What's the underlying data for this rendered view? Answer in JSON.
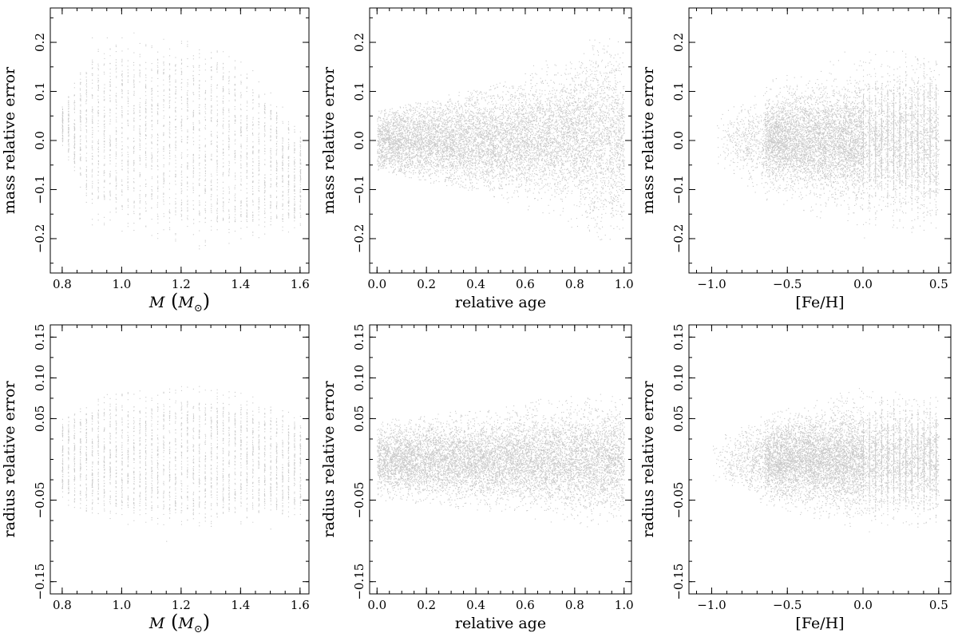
{
  "chart_data": [
    {
      "type": "scatter",
      "panel": "top-left",
      "xlabel": "M (M⊙)",
      "xlabel_math": {
        "var": "M",
        "open": "(",
        "sub_var": "M",
        "sub": "⊙",
        "close": ")"
      },
      "ylabel": "mass relative error",
      "xlim": [
        0.76,
        1.63
      ],
      "ylim": [
        -0.27,
        0.27
      ],
      "xticks": [
        0.8,
        1.0,
        1.2,
        1.4,
        1.6
      ],
      "xtick_labels": [
        "0.8",
        "1.0",
        "1.2",
        "1.4",
        "1.6"
      ],
      "yticks": [
        -0.2,
        -0.1,
        0.0,
        0.1,
        0.2
      ],
      "ytick_labels": [
        "−0.2",
        "−0.1",
        "0.0",
        "0.1",
        "0.2"
      ],
      "x_min_tick": 0.05,
      "y_min_tick": 0.05,
      "grid": false,
      "point_color": "#c9c9c9",
      "distribution": {
        "kind": "columns",
        "x_start": 0.8,
        "x_end": 1.6,
        "x_step": 0.02,
        "center": 0.0,
        "upper": [
          [
            0.8,
            0.06
          ],
          [
            0.9,
            0.16
          ],
          [
            1.3,
            0.16
          ],
          [
            1.4,
            0.13
          ],
          [
            1.6,
            0.0
          ]
        ],
        "lower": [
          [
            0.8,
            0.0
          ],
          [
            0.86,
            -0.07
          ],
          [
            0.9,
            -0.13
          ],
          [
            1.2,
            -0.17
          ],
          [
            1.6,
            -0.16
          ]
        ],
        "outliers": [
          [
            0.9,
            0.21
          ],
          [
            0.95,
            0.21
          ],
          [
            1.0,
            0.21
          ],
          [
            1.04,
            0.22
          ],
          [
            1.18,
            0.17
          ],
          [
            1.26,
            -0.22
          ],
          [
            1.26,
            0.17
          ],
          [
            1.3,
            0.18
          ]
        ]
      }
    },
    {
      "type": "scatter",
      "panel": "top-middle",
      "xlabel": "relative age",
      "ylabel": "mass relative error",
      "xlim": [
        -0.03,
        1.03
      ],
      "ylim": [
        -0.27,
        0.27
      ],
      "xticks": [
        0.0,
        0.2,
        0.4,
        0.6,
        0.8,
        1.0
      ],
      "xtick_labels": [
        "0.0",
        "0.2",
        "0.4",
        "0.6",
        "0.8",
        "1.0"
      ],
      "yticks": [
        -0.2,
        -0.1,
        0.0,
        0.1,
        0.2
      ],
      "ytick_labels": [
        "−0.2",
        "−0.1",
        "0.0",
        "0.1",
        "0.2"
      ],
      "x_min_tick": 0.05,
      "y_min_tick": 0.05,
      "grid": false,
      "point_color": "#c9c9c9",
      "distribution": {
        "kind": "cloud",
        "x_range": [
          0.0,
          1.0
        ],
        "center": [
          [
            0.0,
            0.0
          ],
          [
            0.5,
            0.0
          ],
          [
            0.85,
            0.01
          ],
          [
            1.0,
            0.0
          ]
        ],
        "spread": [
          [
            0.0,
            0.035
          ],
          [
            0.5,
            0.05
          ],
          [
            0.8,
            0.06
          ],
          [
            0.9,
            0.09
          ],
          [
            1.0,
            0.09
          ]
        ],
        "max_extent": [
          [
            0.0,
            0.06
          ],
          [
            0.5,
            0.12
          ],
          [
            0.9,
            0.21
          ],
          [
            1.0,
            0.2
          ]
        ]
      }
    },
    {
      "type": "scatter",
      "panel": "top-right",
      "xlabel": "[Fe/H]",
      "ylabel": "mass relative error",
      "xlim": [
        -1.15,
        0.58
      ],
      "ylim": [
        -0.27,
        0.27
      ],
      "xticks": [
        -1.0,
        -0.5,
        0.0,
        0.5
      ],
      "xtick_labels": [
        "−1.0",
        "−0.5",
        "0.0",
        "0.5"
      ],
      "yticks": [
        -0.2,
        -0.1,
        0.0,
        0.1,
        0.2
      ],
      "ytick_labels": [
        "−0.2",
        "−0.1",
        "0.0",
        "0.1",
        "0.2"
      ],
      "x_min_tick": 0.1,
      "y_min_tick": 0.05,
      "grid": false,
      "point_color": "#c9c9c9",
      "distribution": {
        "kind": "cloud",
        "x_range": [
          -1.0,
          0.5
        ],
        "center": [
          [
            -1.0,
            0.0
          ],
          [
            0.5,
            0.0
          ]
        ],
        "spread": [
          [
            -1.0,
            0.02
          ],
          [
            -0.65,
            0.04
          ],
          [
            0.0,
            0.06
          ],
          [
            0.5,
            0.07
          ]
        ],
        "max_extent": [
          [
            -1.0,
            0.04
          ],
          [
            -0.65,
            0.12
          ],
          [
            0.0,
            0.2
          ],
          [
            0.5,
            0.18
          ]
        ],
        "dense_from": -0.65,
        "columns_from": 0.0
      }
    },
    {
      "type": "scatter",
      "panel": "bottom-left",
      "xlabel": "M (M⊙)",
      "xlabel_math": {
        "var": "M",
        "open": "(",
        "sub_var": "M",
        "sub": "⊙",
        "close": ")"
      },
      "ylabel": "radius relative error",
      "xlim": [
        0.76,
        1.63
      ],
      "ylim": [
        -0.165,
        0.165
      ],
      "xticks": [
        0.8,
        1.0,
        1.2,
        1.4,
        1.6
      ],
      "xtick_labels": [
        "0.8",
        "1.0",
        "1.2",
        "1.4",
        "1.6"
      ],
      "yticks": [
        -0.15,
        -0.05,
        0.05,
        0.1,
        0.15
      ],
      "ytick_labels": [
        "−0.15",
        "−0.05",
        "0.05",
        "0.10",
        "0.15"
      ],
      "x_min_tick": 0.05,
      "y_min_tick": 0.025,
      "grid": false,
      "point_color": "#c9c9c9",
      "distribution": {
        "kind": "columns",
        "x_start": 0.8,
        "x_end": 1.6,
        "x_step": 0.02,
        "center": 0.0,
        "upper": [
          [
            0.8,
            0.04
          ],
          [
            0.86,
            0.055
          ],
          [
            1.0,
            0.065
          ],
          [
            1.2,
            0.07
          ],
          [
            1.4,
            0.065
          ],
          [
            1.6,
            0.04
          ]
        ],
        "lower": [
          [
            0.8,
            -0.04
          ],
          [
            0.86,
            -0.05
          ],
          [
            1.0,
            -0.06
          ],
          [
            1.2,
            -0.065
          ],
          [
            1.4,
            -0.06
          ],
          [
            1.6,
            -0.055
          ]
        ],
        "outliers": [
          [
            1.15,
            -0.1
          ],
          [
            1.5,
            -0.085
          ],
          [
            1.26,
            0.09
          ],
          [
            0.95,
            0.08
          ]
        ]
      }
    },
    {
      "type": "scatter",
      "panel": "bottom-middle",
      "xlabel": "relative age",
      "ylabel": "radius relative error",
      "xlim": [
        -0.03,
        1.03
      ],
      "ylim": [
        -0.165,
        0.165
      ],
      "xticks": [
        0.0,
        0.2,
        0.4,
        0.6,
        0.8,
        1.0
      ],
      "xtick_labels": [
        "0.0",
        "0.2",
        "0.4",
        "0.6",
        "0.8",
        "1.0"
      ],
      "yticks": [
        -0.15,
        -0.05,
        0.05,
        0.1,
        0.15
      ],
      "ytick_labels": [
        "−0.15",
        "−0.05",
        "0.05",
        "0.10",
        "0.15"
      ],
      "x_min_tick": 0.05,
      "y_min_tick": 0.025,
      "grid": false,
      "point_color": "#c9c9c9",
      "distribution": {
        "kind": "cloud",
        "x_range": [
          0.0,
          1.0
        ],
        "center": [
          [
            0.0,
            0.0
          ],
          [
            0.5,
            0.0
          ],
          [
            1.0,
            0.0
          ]
        ],
        "spread": [
          [
            0.0,
            0.02
          ],
          [
            0.5,
            0.025
          ],
          [
            0.85,
            0.03
          ],
          [
            1.0,
            0.03
          ]
        ],
        "max_extent": [
          [
            0.0,
            0.05
          ],
          [
            0.5,
            0.065
          ],
          [
            0.85,
            0.085
          ],
          [
            1.0,
            0.08
          ]
        ]
      }
    },
    {
      "type": "scatter",
      "panel": "bottom-right",
      "xlabel": "[Fe/H]",
      "ylabel": "radius relative error",
      "xlim": [
        -1.15,
        0.58
      ],
      "ylim": [
        -0.165,
        0.165
      ],
      "xticks": [
        -1.0,
        -0.5,
        0.0,
        0.5
      ],
      "xtick_labels": [
        "−1.0",
        "−0.5",
        "0.0",
        "0.5"
      ],
      "yticks": [
        -0.15,
        -0.05,
        0.05,
        0.1,
        0.15
      ],
      "ytick_labels": [
        "−0.15",
        "−0.05",
        "0.05",
        "0.10",
        "0.15"
      ],
      "x_min_tick": 0.1,
      "y_min_tick": 0.025,
      "grid": false,
      "point_color": "#c9c9c9",
      "distribution": {
        "kind": "cloud",
        "x_range": [
          -1.0,
          0.5
        ],
        "center": [
          [
            -1.0,
            0.0
          ],
          [
            0.5,
            0.0
          ]
        ],
        "spread": [
          [
            -1.0,
            0.012
          ],
          [
            -0.65,
            0.022
          ],
          [
            0.0,
            0.03
          ],
          [
            0.5,
            0.03
          ]
        ],
        "max_extent": [
          [
            -1.0,
            0.025
          ],
          [
            -0.65,
            0.055
          ],
          [
            0.0,
            0.09
          ],
          [
            0.5,
            0.08
          ]
        ],
        "dense_from": -0.65,
        "columns_from": 0.0
      }
    }
  ]
}
